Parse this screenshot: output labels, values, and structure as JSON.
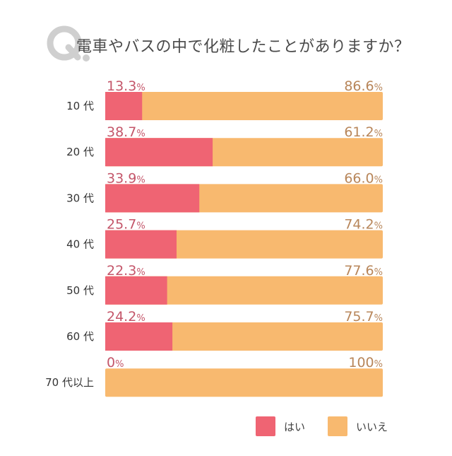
{
  "title": "電車やバスの中で化粧したことがありますか？",
  "badge": {
    "q": "Q",
    "color": "#cfcfcf"
  },
  "colors": {
    "yes": "#ef6473",
    "no": "#f8b96f",
    "yes_text": "#c4566a",
    "no_text": "#b8865a",
    "category_text": "#333333"
  },
  "chart_data": {
    "type": "bar",
    "orientation": "horizontal",
    "stacked": true,
    "categories": [
      "10 代",
      "20 代",
      "30 代",
      "40 代",
      "50 代",
      "60 代",
      "70 代以上"
    ],
    "series": [
      {
        "name": "はい",
        "values": [
          13.3,
          38.7,
          33.9,
          25.7,
          22.3,
          24.2,
          0
        ],
        "labels": [
          "13.3%",
          "38.7%",
          "33.9%",
          "25.7%",
          "22.3%",
          "24.2%",
          "0%"
        ]
      },
      {
        "name": "いいえ",
        "values": [
          86.6,
          61.2,
          66.0,
          74.2,
          77.6,
          75.7,
          100
        ],
        "labels": [
          "86.6%",
          "61.2%",
          "66.0%",
          "74.2%",
          "77.6%",
          "75.7%",
          "100%"
        ]
      }
    ],
    "xlim": [
      0,
      100
    ],
    "legend_position": "bottom-right"
  },
  "legend": [
    {
      "label": "はい",
      "color": "#ef6473"
    },
    {
      "label": "いいえ",
      "color": "#f8b96f"
    }
  ]
}
